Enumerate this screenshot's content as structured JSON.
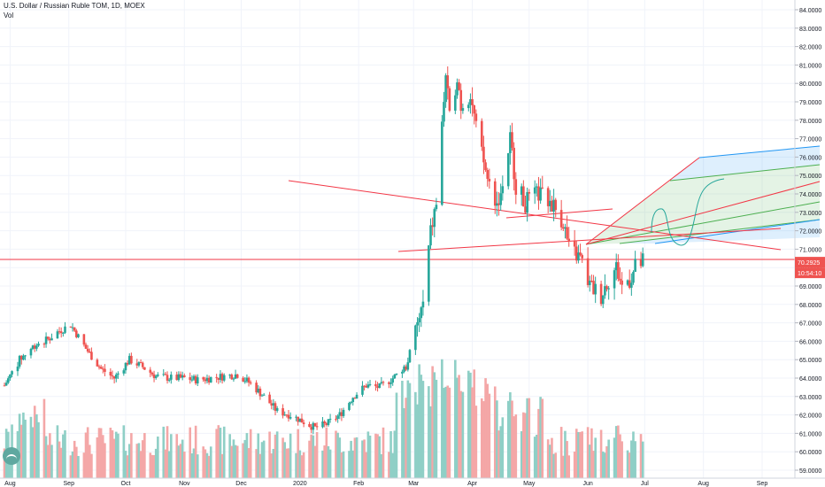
{
  "header": {
    "title": "U.S. Dollar / Russian Ruble TOM, 1D, MOEX",
    "volume_label": "Vol"
  },
  "price_tag": {
    "price": "70.2925",
    "countdown": "10:54:10"
  },
  "icons": {
    "logo": "tradingview-logo-icon"
  },
  "colors": {
    "up": "#26a69a",
    "down": "#ef5350",
    "vol_up": "#8fcfc6",
    "vol_down": "#f4a7a7",
    "trendline": "#f23645",
    "pitchfork_blue": "#2196f3",
    "pitchfork_green": "#4caf50"
  },
  "chart_data": {
    "type": "candlestick",
    "title": "U.S. Dollar / Russian Ruble TOM, 1D, MOEX",
    "ylim": [
      58.8,
      84.6
    ],
    "y_ticks": [
      "59.0000",
      "60.0000",
      "61.0000",
      "62.0000",
      "63.0000",
      "64.0000",
      "65.0000",
      "66.0000",
      "67.0000",
      "68.0000",
      "69.0000",
      "70.0000",
      "71.0000",
      "72.0000",
      "73.0000",
      "74.0000",
      "75.0000",
      "76.0000",
      "77.0000",
      "78.0000",
      "79.0000",
      "80.0000",
      "81.0000",
      "82.0000",
      "83.0000",
      "84.0000"
    ],
    "x_ticks": [
      "Aug",
      "Sep",
      "Oct",
      "Nov",
      "Dec",
      "2020",
      "Feb",
      "Mar",
      "Apr",
      "May",
      "Jun",
      "Jul",
      "Aug",
      "Sep"
    ],
    "last_price": 70.2925,
    "price_keypoints": [
      [
        "2019-07-29",
        63.6
      ],
      [
        "2019-08-06",
        65.0
      ],
      [
        "2019-08-14",
        65.8
      ],
      [
        "2019-08-21",
        66.1
      ],
      [
        "2019-08-26",
        66.5
      ],
      [
        "2019-09-02",
        66.9
      ],
      [
        "2019-09-10",
        65.6
      ],
      [
        "2019-09-18",
        64.5
      ],
      [
        "2019-09-25",
        64.0
      ],
      [
        "2019-10-03",
        65.0
      ],
      [
        "2019-10-10",
        64.6
      ],
      [
        "2019-10-17",
        64.1
      ],
      [
        "2019-10-25",
        64.0
      ],
      [
        "2019-11-01",
        64.0
      ],
      [
        "2019-11-08",
        63.9
      ],
      [
        "2019-11-15",
        64.0
      ],
      [
        "2019-11-22",
        64.1
      ],
      [
        "2019-11-29",
        64.2
      ],
      [
        "2019-12-06",
        63.7
      ],
      [
        "2019-12-13",
        63.0
      ],
      [
        "2019-12-20",
        62.2
      ],
      [
        "2019-12-27",
        62.0
      ],
      [
        "2020-01-09",
        61.3
      ],
      [
        "2020-01-15",
        61.5
      ],
      [
        "2020-01-22",
        62.0
      ],
      [
        "2020-01-29",
        63.0
      ],
      [
        "2020-02-05",
        63.6
      ],
      [
        "2020-02-12",
        63.5
      ],
      [
        "2020-02-19",
        64.0
      ],
      [
        "2020-02-26",
        64.6
      ],
      [
        "2020-03-02",
        66.5
      ],
      [
        "2020-03-06",
        68.0
      ],
      [
        "2020-03-10",
        71.9
      ],
      [
        "2020-03-13",
        73.5
      ],
      [
        "2020-03-18",
        80.5
      ],
      [
        "2020-03-20",
        78.0
      ],
      [
        "2020-03-24",
        80.5
      ],
      [
        "2020-03-26",
        78.8
      ],
      [
        "2020-03-31",
        79.5
      ],
      [
        "2020-04-03",
        77.5
      ],
      [
        "2020-04-09",
        74.8
      ],
      [
        "2020-04-14",
        73.5
      ],
      [
        "2020-04-17",
        74.5
      ],
      [
        "2020-04-21",
        77.0
      ],
      [
        "2020-04-24",
        74.5
      ],
      [
        "2020-04-29",
        73.5
      ],
      [
        "2020-05-06",
        74.0
      ],
      [
        "2020-05-13",
        73.5
      ],
      [
        "2020-05-19",
        72.5
      ],
      [
        "2020-05-22",
        71.0
      ],
      [
        "2020-05-28",
        70.5
      ],
      [
        "2020-06-02",
        69.0
      ],
      [
        "2020-06-08",
        68.5
      ],
      [
        "2020-06-11",
        69.2
      ],
      [
        "2020-06-16",
        70.0
      ],
      [
        "2020-06-19",
        69.0
      ],
      [
        "2020-06-24",
        69.5
      ],
      [
        "2020-06-26",
        70.0
      ],
      [
        "2020-06-30",
        70.3
      ]
    ],
    "volume": "relative bars under price, peaks in mid-March 2020, unlabeled"
  }
}
